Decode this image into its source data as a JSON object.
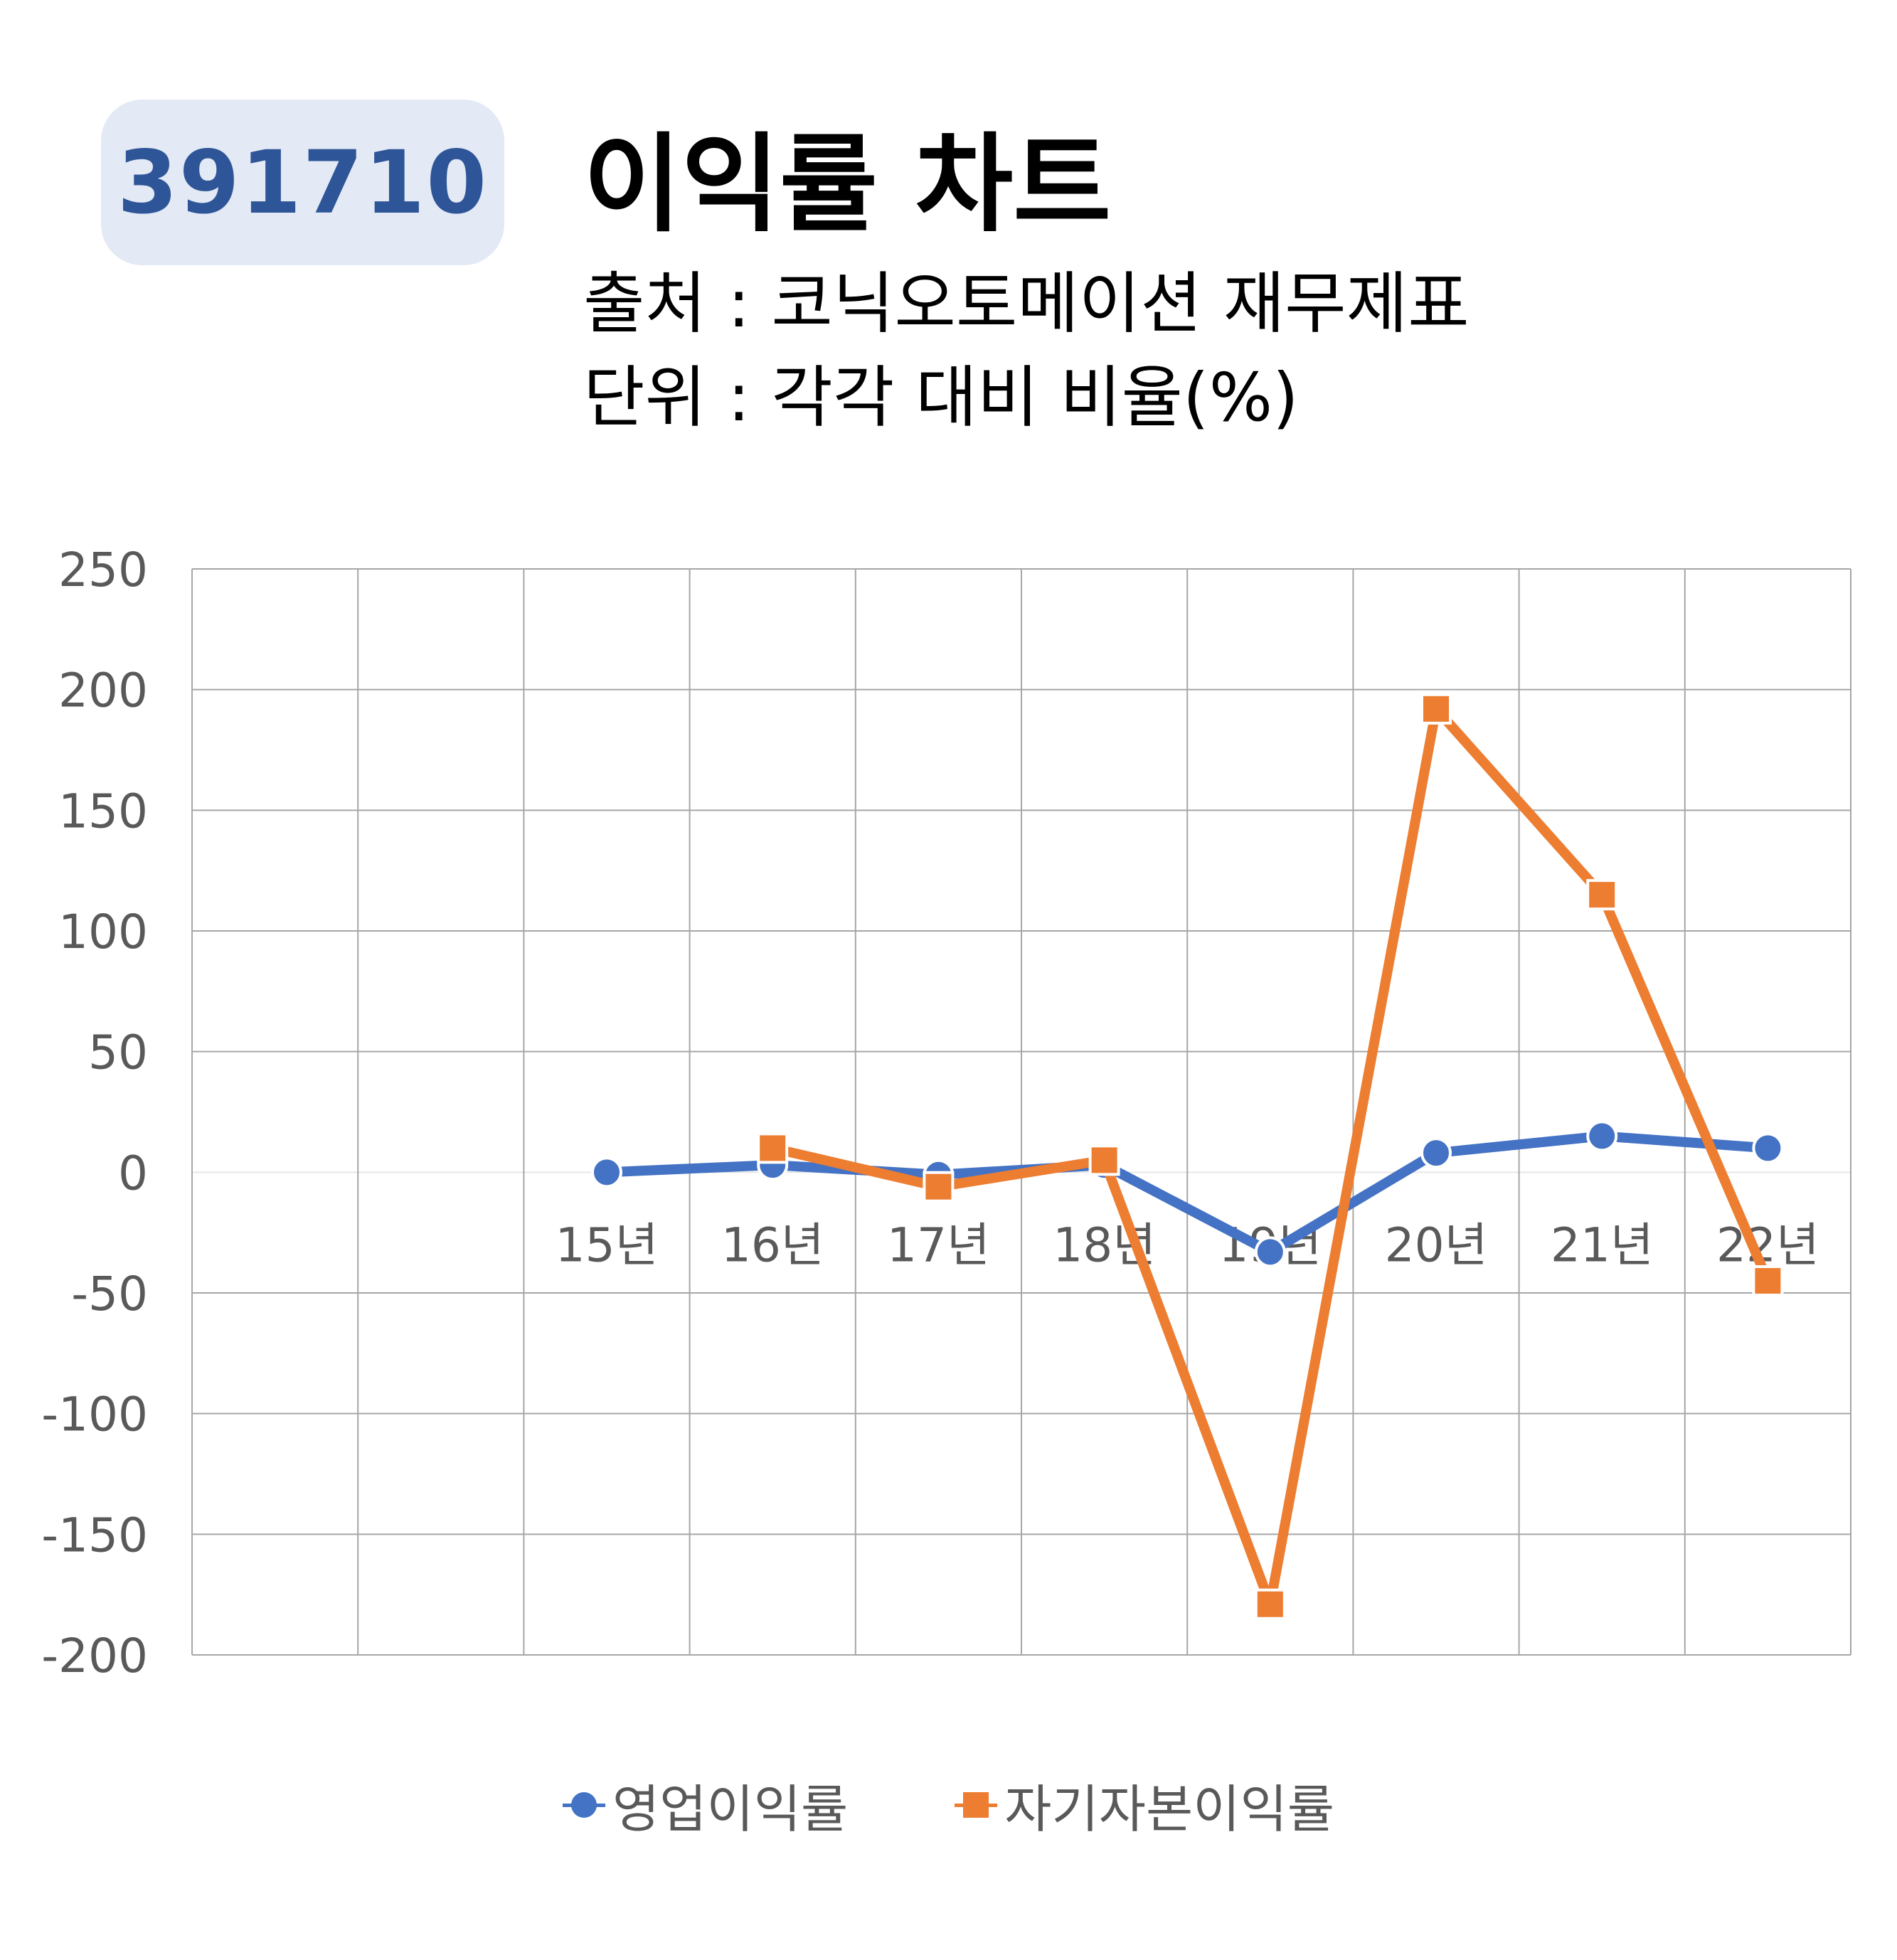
{
  "header": {
    "code": "391710",
    "title": "이익률 차트",
    "source": "출처 : 코닉오토메이션 재무제표",
    "unit": "단위 : 각각 대비 비율(%)"
  },
  "colors": {
    "series_blue": "#4472c4",
    "series_orange": "#ed7d31",
    "grid": "#a6a6a6",
    "axis_text": "#595959",
    "badge_bg": "#e3e9f5",
    "badge_text": "#2e5597"
  },
  "chart_data": {
    "type": "line",
    "categories": [
      "",
      "",
      "15년",
      "16년",
      "17년",
      "18년",
      "19년",
      "20년",
      "21년",
      "22년"
    ],
    "series": [
      {
        "name": "영업이익률",
        "color": "#4472c4",
        "marker": "circle",
        "values": [
          null,
          null,
          0,
          3,
          -1,
          3,
          -33,
          8,
          15,
          10
        ]
      },
      {
        "name": "자기자본이익률",
        "color": "#ed7d31",
        "marker": "square",
        "values": [
          null,
          null,
          null,
          10,
          -6,
          5,
          -179,
          192,
          115,
          -45
        ]
      }
    ],
    "ylim": [
      -200,
      250
    ],
    "yticks": [
      "250",
      "200",
      "150",
      "100",
      "50",
      "0",
      "-50",
      "-100",
      "-150",
      "-200"
    ],
    "grid": true,
    "legend": "bottom"
  }
}
